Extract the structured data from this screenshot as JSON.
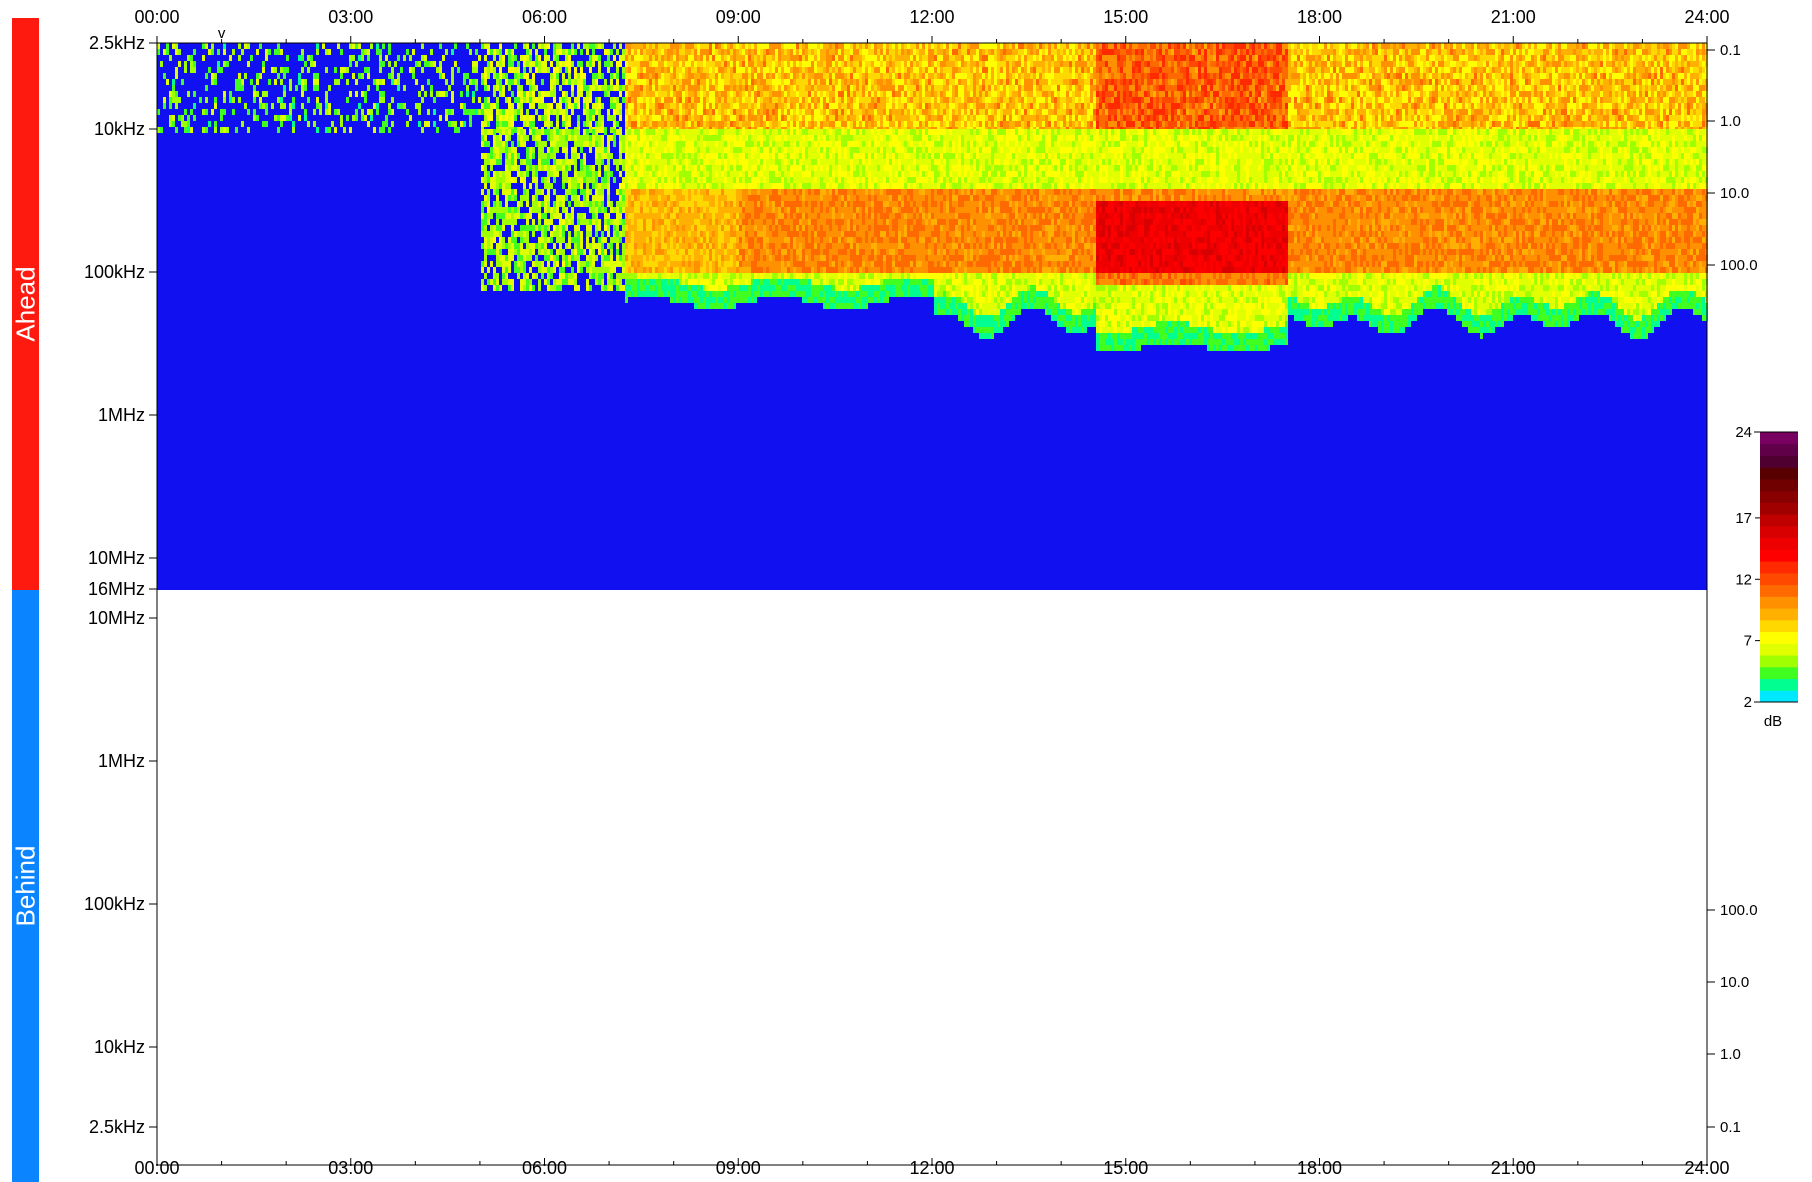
{
  "panels": {
    "ahead_label": "Ahead",
    "behind_label": "Behind",
    "ahead_color": "#ff1a10",
    "behind_color": "#0a85ff"
  },
  "chart_data": {
    "type": "heatmap",
    "x_ticks": [
      "00:00",
      "03:00",
      "06:00",
      "09:00",
      "12:00",
      "15:00",
      "18:00",
      "21:00",
      "24:00"
    ],
    "x_range_hours": [
      0,
      24
    ],
    "x_minor_tick_step_hours": 1,
    "marker": {
      "label": "v",
      "hour": 1.0
    },
    "ahead": {
      "y_ticks_left": [
        "2.5kHz",
        "10kHz",
        "100kHz",
        "1MHz",
        "10MHz",
        "16MHz"
      ],
      "y_ticks_right": [
        "0.1",
        "1.0",
        "10.0",
        "100.0"
      ],
      "y_scale": "log",
      "y_range_hz": [
        2500,
        16000000
      ],
      "y_direction": "frequency increases downward",
      "background_color": "#1010f0",
      "description_zones": [
        {
          "hours": [
            0,
            5
          ],
          "freq_band": "2.5kHz-10kHz",
          "intensity_db": 2
        },
        {
          "hours": [
            5,
            7.2
          ],
          "freq_band": "10kHz-130kHz",
          "intensity_db": 3
        },
        {
          "hours": [
            7.2,
            24
          ],
          "freq_band": "2.5kHz-150kHz",
          "intensity_db": 6
        },
        {
          "hours": [
            14.5,
            17.5
          ],
          "freq_band": "30kHz-100kHz",
          "intensity_db": 11
        }
      ]
    },
    "behind": {
      "y_ticks_left": [
        "10MHz",
        "1MHz",
        "100kHz",
        "10kHz",
        "2.5kHz"
      ],
      "y_ticks_right": [
        "100.0",
        "10.0",
        "1.0",
        "0.1"
      ],
      "y_scale": "log",
      "y_direction": "frequency increases upward",
      "empty": true
    },
    "colorbar": {
      "ticks": [
        "24",
        "17",
        "12",
        "7",
        "2"
      ],
      "tick_values": [
        24,
        17,
        12,
        7,
        2
      ],
      "unit": "dB",
      "range": [
        2,
        24
      ],
      "colors": [
        "#00e8ff",
        "#00ff90",
        "#40ff20",
        "#a0ff00",
        "#e0ff00",
        "#ffff00",
        "#ffd800",
        "#ffb000",
        "#ff9000",
        "#ff6a00",
        "#ff4800",
        "#ff2a00",
        "#ff0000",
        "#ee0000",
        "#d80000",
        "#c00000",
        "#a00000",
        "#880000",
        "#700000",
        "#580000",
        "#500030",
        "#600048",
        "#780060"
      ]
    }
  }
}
